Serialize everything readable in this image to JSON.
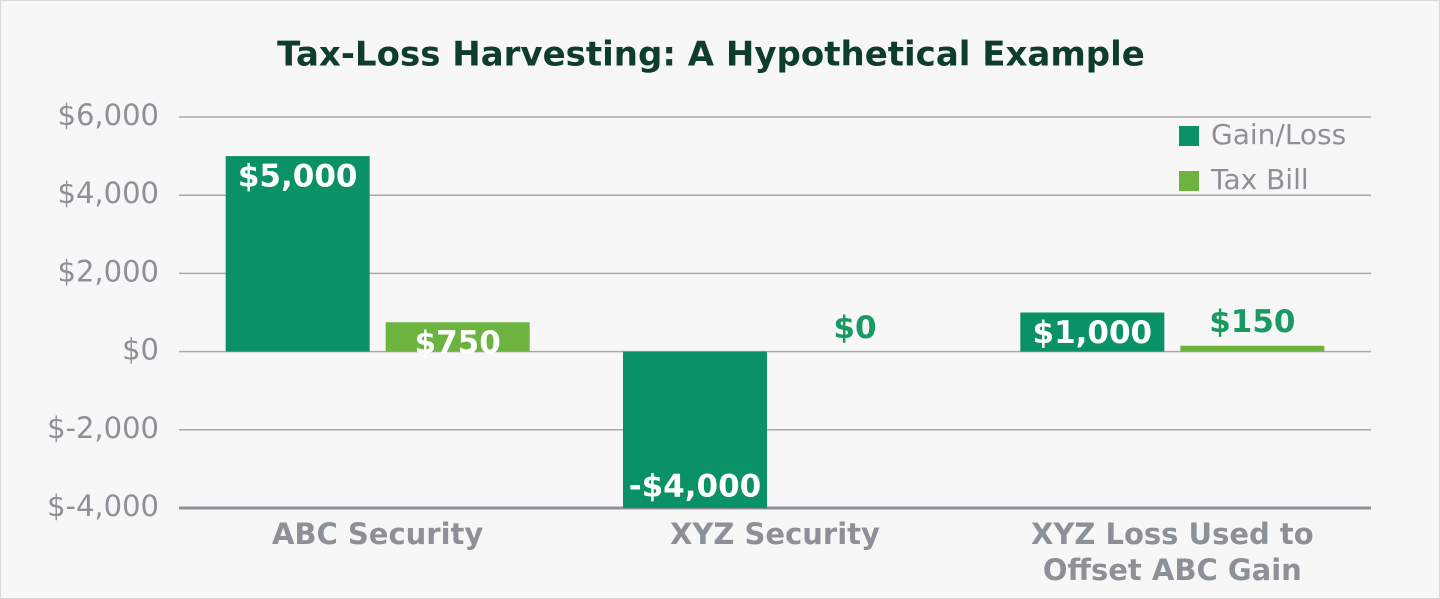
{
  "chart_data": {
    "type": "bar",
    "title": "Tax-Loss Harvesting: A Hypothetical Example",
    "categories": [
      "ABC Security",
      "XYZ Security",
      "XYZ Loss Used to Offset ABC Gain"
    ],
    "series": [
      {
        "name": "Gain/Loss",
        "color": "#0a9165",
        "values": [
          5000,
          -4000,
          1000
        ],
        "value_labels": [
          "$5,000",
          "-$4,000",
          "$1,000"
        ]
      },
      {
        "name": "Tax Bill",
        "color": "#6cb33f",
        "values": [
          750,
          0,
          150
        ],
        "value_labels": [
          "$750",
          "$0",
          "$150"
        ]
      }
    ],
    "ylim": [
      -4000,
      6000
    ],
    "yticks": [
      {
        "value": -4000,
        "label": "$-4,000"
      },
      {
        "value": -2000,
        "label": "$-2,000"
      },
      {
        "value": 0,
        "label": "$0"
      },
      {
        "value": 2000,
        "label": "$2,000"
      },
      {
        "value": 4000,
        "label": "$4,000"
      },
      {
        "value": 6000,
        "label": "$6,000"
      }
    ],
    "grid": true,
    "legend": "top-right"
  }
}
